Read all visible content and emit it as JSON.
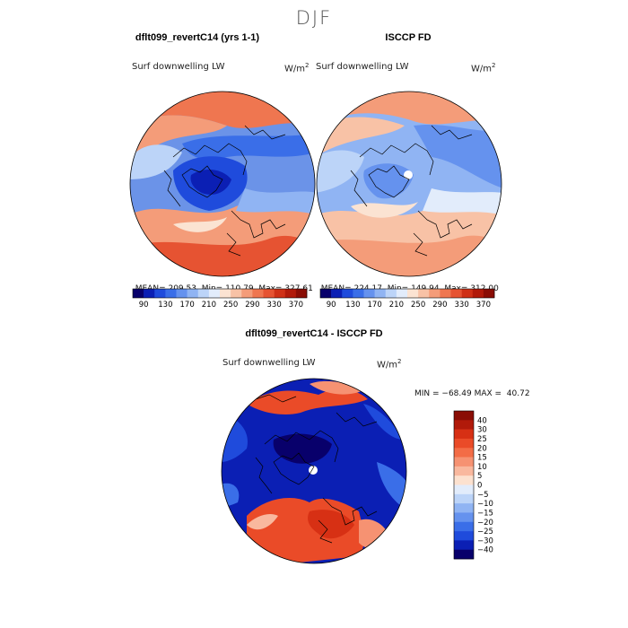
{
  "figure": {
    "season": "DJF",
    "bottom_title": "dflt099_revertC14 - ISCCP FD"
  },
  "panels": [
    {
      "title": "dflt099_revertC14 (yrs 1-1)",
      "variable": "Surf downwelling LW",
      "units_base": "W/m",
      "units_exp": "2",
      "mean_label": "MEAN= 209.53",
      "min_label": "Min= 110.79",
      "max_label": "Max= 327.61"
    },
    {
      "title": "ISCCP FD",
      "variable": "Surf downwelling LW",
      "units_base": "W/m",
      "units_exp": "2",
      "mean_label": "MEAN= 224.17",
      "min_label": "Min= 149.94",
      "max_label": "Max= 312.00"
    }
  ],
  "diff_panel": {
    "variable": "Surf downwelling LW",
    "units_base": "W/m",
    "units_exp": "2",
    "stats": "MIN = −68.49 MAX =  40.72"
  },
  "colorbar_horizontal": {
    "tick_labels": [
      "90",
      "130",
      "170",
      "210",
      "250",
      "290",
      "330",
      "370"
    ],
    "colors": [
      "#08006b",
      "#0b1fb4",
      "#1f4bdc",
      "#3a6ee8",
      "#6592ee",
      "#90b4f3",
      "#bcd4f8",
      "#e2ecfb",
      "#fbe3d2",
      "#f8c2a6",
      "#f49c79",
      "#ef7650",
      "#e65332",
      "#cf3016",
      "#b11a0a",
      "#8a0d05"
    ]
  },
  "colorbar_vertical": {
    "tick_labels": [
      "40",
      "30",
      "25",
      "20",
      "15",
      "10",
      "5",
      "0",
      "−5",
      "−10",
      "−15",
      "−20",
      "−25",
      "−30",
      "−40"
    ],
    "colors": [
      "#8a0d05",
      "#b11a0a",
      "#d73014",
      "#ea4b28",
      "#f36c46",
      "#f69272",
      "#f9b89e",
      "#fce1cf",
      "#e2ecfb",
      "#bcd4f8",
      "#90b4f3",
      "#6592ee",
      "#3a6ee8",
      "#1f4bdc",
      "#0b1fb4",
      "#08006b"
    ]
  }
}
